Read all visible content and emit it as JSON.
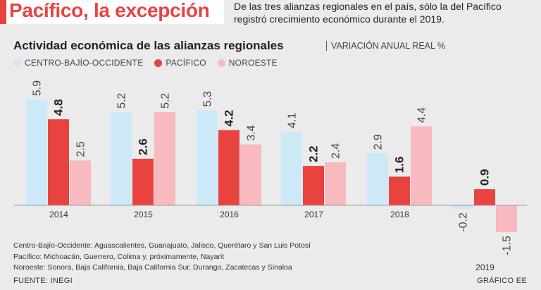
{
  "header": {
    "title": "Pacífico, la excepción",
    "subtitle": "De las tres alianzas regionales en el país, sólo la del Pacífico registró crecimiento económico durante el 2019."
  },
  "chart_data": {
    "type": "bar",
    "title": "Actividad económica de las alianzas regionales",
    "subtitle": "VARIACIÓN ANUAL REAL %",
    "categories": [
      "2014",
      "2015",
      "2016",
      "2017",
      "2018",
      "2019"
    ],
    "series": [
      {
        "name": "CENTRO-BAJÍO-OCCIDENTE",
        "color": "#cde8f6",
        "values": [
          5.9,
          5.2,
          5.3,
          4.1,
          2.9,
          -0.2
        ],
        "labels": [
          "5.9",
          "5.2",
          "5.3",
          "4.1",
          "2.9",
          "-0.2"
        ],
        "bold": false
      },
      {
        "name": "PACÍFICO",
        "color": "#e8433f",
        "values": [
          4.8,
          2.6,
          4.2,
          2.2,
          1.6,
          0.9
        ],
        "labels": [
          "4.8",
          "2.6",
          "4.2",
          "2.2",
          "1.6",
          "0.9"
        ],
        "bold": true
      },
      {
        "name": "NOROESTE",
        "color": "#f8b9bf",
        "values": [
          2.5,
          5.2,
          3.4,
          2.4,
          4.4,
          -1.5
        ],
        "labels": [
          "2.5",
          "5.2",
          "3.4",
          "2.4",
          "4.4",
          "-1.5"
        ],
        "bold": false
      }
    ],
    "xlabel": "",
    "ylabel": "",
    "ylim": [
      -1.5,
      6.5
    ],
    "legend_position": "top-left",
    "grid": false
  },
  "notes": [
    "Centro-Bajío-Occidente: Aguascalientes, Guanajuato, Jalisco, Querétaro y San Luis Potosí",
    "Pacífico: Michoacán, Guerrero, Colima y, próximamente, Nayarit",
    "Noroeste: Sonora, Baja California, Baja California Sur, Durango, Zacatecas y Sinaloa"
  ],
  "footer": {
    "source": "FUENTE: INEGI",
    "credit": "GRÁFICO EE"
  }
}
